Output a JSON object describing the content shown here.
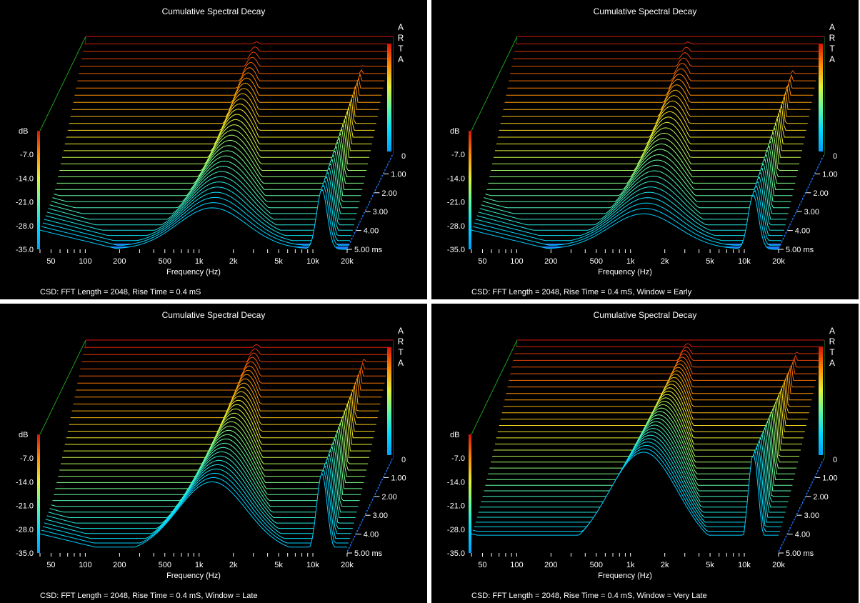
{
  "chart_data": [
    {
      "type": "area",
      "title": "Cumulative Spectral Decay",
      "brand": "ARTA",
      "caption": "CSD: FFT Length = 2048, Rise Time = 0.4 mS",
      "xlabel": "Frequency (Hz)",
      "xticks": [
        "50",
        "100",
        "200",
        "500",
        "1k",
        "2k",
        "5k",
        "10k",
        "20k"
      ],
      "xlim": [
        40,
        20000
      ],
      "xscale": "log",
      "ylabel": "dB",
      "yticks": [
        "-7.0",
        "-14.0",
        "-21.0",
        "-28.0",
        "-35.0"
      ],
      "ylim": [
        -35,
        0
      ],
      "zticks": [
        "1.00",
        "2.00",
        "3.00",
        "4.00",
        "5.00 ms"
      ],
      "zlim": [
        0,
        5
      ],
      "floor_label": "0",
      "resonances_hz": [
        1300,
        12000
      ],
      "window": "none"
    },
    {
      "type": "area",
      "title": "Cumulative Spectral Decay",
      "brand": "ARTA",
      "caption": "CSD: FFT Length = 2048, Rise Time = 0.4 mS, Window = Early",
      "xlabel": "Frequency (Hz)",
      "xticks": [
        "50",
        "100",
        "200",
        "500",
        "1k",
        "2k",
        "5k",
        "10k",
        "20k"
      ],
      "xlim": [
        40,
        20000
      ],
      "xscale": "log",
      "ylabel": "dB",
      "yticks": [
        "-7.0",
        "-14.0",
        "-21.0",
        "-28.0",
        "-35.0"
      ],
      "ylim": [
        -35,
        0
      ],
      "zticks": [
        "1.00",
        "2.00",
        "3.00",
        "4.00",
        "5.00 ms"
      ],
      "zlim": [
        0,
        5
      ],
      "floor_label": "0",
      "resonances_hz": [
        1300,
        12000
      ],
      "window": "early"
    },
    {
      "type": "area",
      "title": "Cumulative Spectral Decay",
      "brand": "ARTA",
      "caption": "CSD: FFT Length = 2048, Rise Time = 0.4 mS, Window = Late",
      "xlabel": "Frequency (Hz)",
      "xticks": [
        "50",
        "100",
        "200",
        "500",
        "1k",
        "2k",
        "5k",
        "10k",
        "20k"
      ],
      "xlim": [
        40,
        20000
      ],
      "xscale": "log",
      "ylabel": "dB",
      "yticks": [
        "-7.0",
        "-14.0",
        "-21.0",
        "-28.0",
        "-35.0"
      ],
      "ylim": [
        -35,
        0
      ],
      "zticks": [
        "1.00",
        "2.00",
        "3.00",
        "4.00",
        "5.00 ms"
      ],
      "zlim": [
        0,
        5
      ],
      "floor_label": "0",
      "resonances_hz": [
        1300,
        12000
      ],
      "window": "late"
    },
    {
      "type": "area",
      "title": "Cumulative Spectral Decay",
      "brand": "ARTA",
      "caption": "CSD: FFT Length = 2048, Rise Time = 0.4 mS, Window = Very Late",
      "xlabel": "Frequency (Hz)",
      "xticks": [
        "50",
        "100",
        "200",
        "500",
        "1k",
        "2k",
        "5k",
        "10k",
        "20k"
      ],
      "xlim": [
        40,
        20000
      ],
      "xscale": "log",
      "ylabel": "dB",
      "yticks": [
        "-7.0",
        "-14.0",
        "-21.0",
        "-28.0",
        "-35.0"
      ],
      "ylim": [
        -35,
        0
      ],
      "zticks": [
        "1.00",
        "2.00",
        "3.00",
        "4.00",
        "5.00 ms"
      ],
      "zlim": [
        0,
        5
      ],
      "floor_label": "0",
      "resonances_hz": [
        1300,
        12000
      ],
      "window": "very-late"
    }
  ]
}
